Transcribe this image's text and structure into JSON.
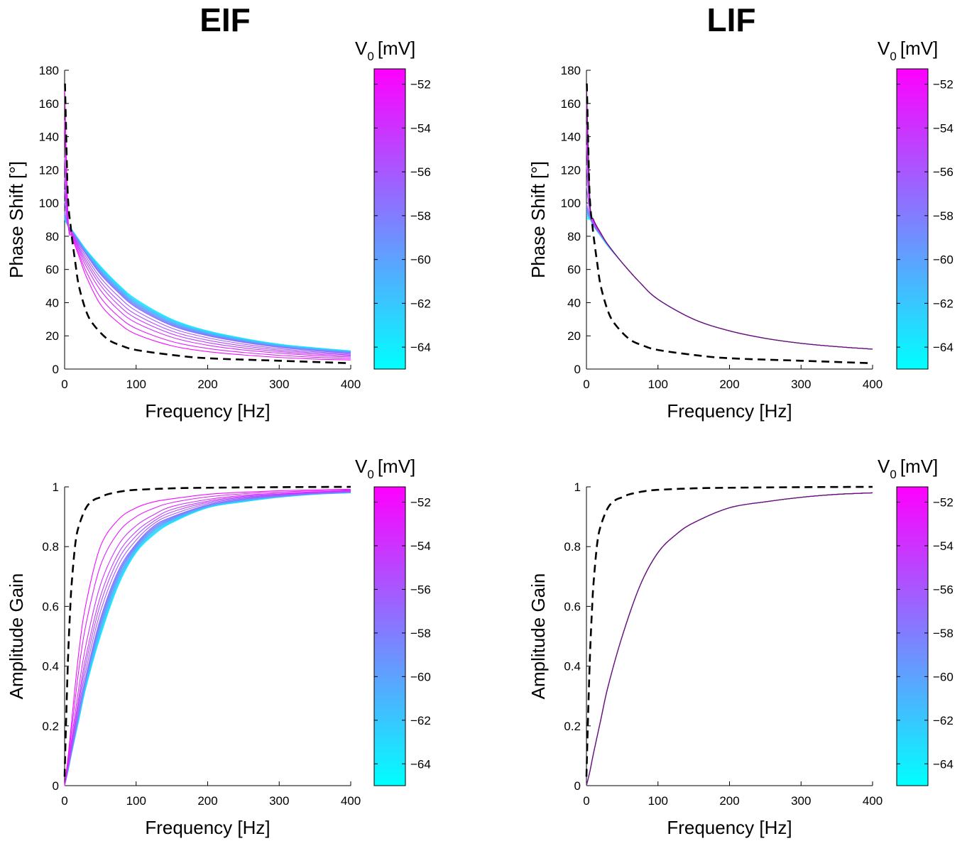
{
  "column_titles": [
    "EIF",
    "LIF"
  ],
  "colorbar": {
    "label_main": "V",
    "label_sub": "0",
    "label_unit": "[mV]",
    "ticks": [
      -52,
      -54,
      -56,
      -58,
      -60,
      -62,
      -64
    ],
    "range": [
      -65,
      -51.3
    ],
    "color_low": "#00ffff",
    "color_high": "#ff00ff"
  },
  "chart_data": [
    {
      "id": "eif-phase",
      "type": "line",
      "column": "EIF",
      "xlabel": "Frequency [Hz]",
      "ylabel": "Phase Shift [°]",
      "xlim": [
        0,
        400
      ],
      "ylim": [
        0,
        180
      ],
      "xticks": [
        0,
        100,
        200,
        300,
        400
      ],
      "yticks": [
        0,
        20,
        40,
        60,
        80,
        100,
        120,
        140,
        160,
        180
      ],
      "grid": false,
      "reference_curve": {
        "style": "dashed",
        "color": "#000000",
        "x": [
          0.5,
          2,
          4,
          6,
          8,
          10,
          15,
          20,
          30,
          40,
          60,
          80,
          100,
          150,
          200,
          300,
          400
        ],
        "y": [
          172,
          145,
          110,
          95,
          88,
          80,
          64,
          50,
          35,
          27,
          18,
          14,
          11.5,
          8.5,
          6.5,
          5,
          3.5
        ]
      },
      "voltage_curves": {
        "color_scale": "V0 [mV]",
        "x": [
          0,
          5,
          10,
          20,
          30,
          50,
          75,
          100,
          150,
          200,
          250,
          300,
          350,
          400
        ],
        "series": [
          {
            "v0": -64,
            "y": [
              90,
              86,
              84,
              78,
              72,
              62,
              51,
              42,
              30,
              23,
              18.5,
              15,
              12.8,
              11
            ]
          },
          {
            "v0": -57,
            "y": [
              95,
              86,
              83,
              76,
              69,
              57,
              46,
              37,
              26,
              20,
              16,
              13,
              11,
              9.5
            ]
          },
          {
            "v0": -54,
            "y": [
              120,
              86,
              82,
              72,
              63,
              49,
              37,
              29,
              20,
              15,
              12,
              10,
              8.5,
              7.5
            ]
          },
          {
            "v0": -52,
            "y": [
              172,
              90,
              80,
              68,
              56,
              39,
              28,
              21,
              14,
              10.5,
              8.5,
              7,
              6,
              5.5
            ]
          }
        ]
      }
    },
    {
      "id": "lif-phase",
      "type": "line",
      "column": "LIF",
      "xlabel": "Frequency [Hz]",
      "ylabel": "Phase Shift [°]",
      "xlim": [
        0,
        400
      ],
      "ylim": [
        0,
        180
      ],
      "xticks": [
        0,
        100,
        200,
        300,
        400
      ],
      "yticks": [
        0,
        20,
        40,
        60,
        80,
        100,
        120,
        140,
        160,
        180
      ],
      "grid": false,
      "reference_curve": {
        "style": "dashed",
        "color": "#000000",
        "x": [
          0.5,
          2,
          4,
          6,
          8,
          10,
          15,
          20,
          30,
          40,
          60,
          80,
          100,
          150,
          200,
          300,
          400
        ],
        "y": [
          172,
          145,
          110,
          95,
          88,
          80,
          64,
          50,
          35,
          27,
          18,
          14,
          11.5,
          8.5,
          6.5,
          5,
          3.5
        ]
      },
      "voltage_curves": {
        "color_scale": "V0 [mV]",
        "x": [
          0,
          5,
          10,
          20,
          30,
          50,
          75,
          100,
          150,
          200,
          250,
          300,
          350,
          400
        ],
        "series": [
          {
            "v0": -64,
            "y": [
              90,
              90,
              86,
              80,
              74,
              64,
              52,
              42,
              30,
              23,
              18.5,
              15.5,
              13.5,
              12
            ]
          },
          {
            "v0": -57,
            "y": [
              100,
              92,
              87,
              81,
              75,
              64,
              52,
              42,
              30,
              23,
              18.5,
              15.5,
              13.5,
              12
            ]
          },
          {
            "v0": -52,
            "y": [
              172,
              100,
              90,
              82,
              75,
              64,
              52,
              42,
              30,
              23,
              18.5,
              15.5,
              13.5,
              12
            ]
          }
        ]
      }
    },
    {
      "id": "eif-gain",
      "type": "line",
      "column": "EIF",
      "xlabel": "Frequency [Hz]",
      "ylabel": "Amplitude Gain",
      "xlim": [
        0,
        400
      ],
      "ylim": [
        0,
        1
      ],
      "xticks": [
        0,
        100,
        200,
        300,
        400
      ],
      "yticks": [
        0,
        0.2,
        0.4,
        0.6,
        0.8,
        1
      ],
      "grid": false,
      "reference_curve": {
        "style": "dashed",
        "color": "#000000",
        "x": [
          0,
          2,
          5,
          8,
          10,
          15,
          20,
          30,
          40,
          50,
          60,
          80,
          100,
          150,
          200,
          300,
          400
        ],
        "y": [
          0.03,
          0.21,
          0.44,
          0.6,
          0.68,
          0.81,
          0.87,
          0.93,
          0.955,
          0.965,
          0.975,
          0.985,
          0.99,
          0.995,
          0.997,
          0.999,
          1.0
        ]
      },
      "voltage_curves": {
        "color_scale": "V0 [mV]",
        "x": [
          0,
          5,
          10,
          20,
          30,
          50,
          75,
          100,
          125,
          150,
          200,
          250,
          300,
          350,
          400
        ],
        "series": [
          {
            "v0": -64,
            "y": [
              0,
              0.05,
              0.11,
              0.22,
              0.33,
              0.5,
              0.67,
              0.78,
              0.84,
              0.88,
              0.93,
              0.95,
              0.965,
              0.975,
              0.98
            ]
          },
          {
            "v0": -57,
            "y": [
              0,
              0.06,
              0.12,
              0.25,
              0.37,
              0.56,
              0.72,
              0.81,
              0.87,
              0.9,
              0.94,
              0.96,
              0.97,
              0.978,
              0.983
            ]
          },
          {
            "v0": -54,
            "y": [
              0,
              0.07,
              0.15,
              0.31,
              0.45,
              0.65,
              0.79,
              0.86,
              0.9,
              0.93,
              0.955,
              0.97,
              0.977,
              0.982,
              0.987
            ]
          },
          {
            "v0": -52,
            "y": [
              0,
              0.1,
              0.22,
              0.45,
              0.61,
              0.8,
              0.89,
              0.93,
              0.95,
              0.96,
              0.975,
              0.982,
              0.987,
              0.99,
              0.992
            ]
          }
        ]
      }
    },
    {
      "id": "lif-gain",
      "type": "line",
      "column": "LIF",
      "xlabel": "Frequency [Hz]",
      "ylabel": "Amplitude Gain",
      "xlim": [
        0,
        400
      ],
      "ylim": [
        0,
        1
      ],
      "xticks": [
        0,
        100,
        200,
        300,
        400
      ],
      "yticks": [
        0,
        0.2,
        0.4,
        0.6,
        0.8,
        1
      ],
      "grid": false,
      "reference_curve": {
        "style": "dashed",
        "color": "#000000",
        "x": [
          0,
          2,
          5,
          8,
          10,
          15,
          20,
          30,
          40,
          50,
          60,
          80,
          100,
          150,
          200,
          300,
          400
        ],
        "y": [
          0.03,
          0.21,
          0.44,
          0.6,
          0.68,
          0.81,
          0.87,
          0.93,
          0.955,
          0.965,
          0.975,
          0.985,
          0.99,
          0.995,
          0.997,
          0.999,
          1.0
        ]
      },
      "voltage_curves": {
        "color_scale": "V0 [mV]",
        "x": [
          0,
          5,
          10,
          20,
          30,
          50,
          75,
          100,
          125,
          150,
          200,
          250,
          300,
          350,
          400
        ],
        "series": [
          {
            "v0": -64,
            "y": [
              0,
              0.05,
              0.11,
              0.22,
              0.33,
              0.5,
              0.67,
              0.78,
              0.84,
              0.88,
              0.93,
              0.95,
              0.965,
              0.975,
              0.98
            ]
          },
          {
            "v0": -52,
            "y": [
              0,
              0.05,
              0.11,
              0.22,
              0.33,
              0.5,
              0.67,
              0.78,
              0.84,
              0.88,
              0.93,
              0.95,
              0.965,
              0.975,
              0.98
            ]
          }
        ]
      }
    }
  ]
}
